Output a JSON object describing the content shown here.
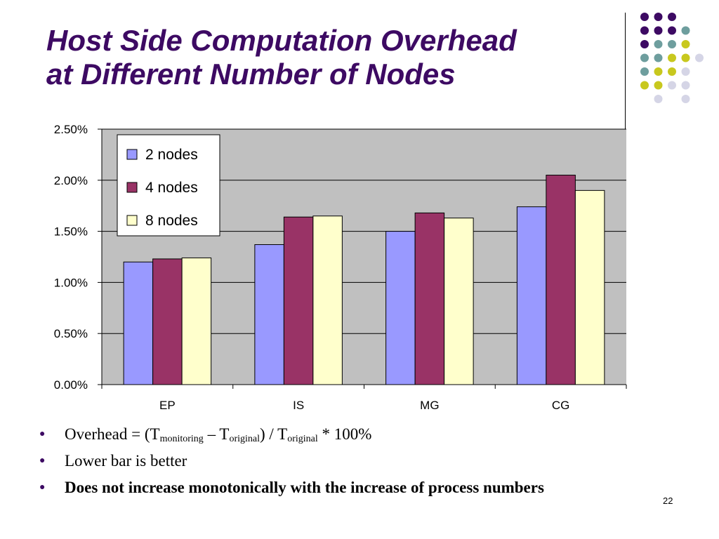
{
  "slide": {
    "title_line1": "Host Side Computation Overhead",
    "title_line2": "at Different Number of Nodes",
    "page_number": "22",
    "decor_colors": {
      "purple": "#3d0a63",
      "teal": "#6e9e9e",
      "yellow": "#c8c81e",
      "lavender": "#d5d5e6"
    }
  },
  "bullets": {
    "formula": {
      "prefix": "Overhead = (T",
      "sub1": "monitoring",
      "mid1": " – T",
      "sub2": "original",
      "mid2": ") / T",
      "sub3": "original",
      "suffix": " * 100%"
    },
    "item2": "Lower bar is better",
    "item3": "Does not increase monotonically with the increase of process numbers"
  },
  "chart_data": {
    "type": "bar",
    "categories": [
      "EP",
      "IS",
      "MG",
      "CG"
    ],
    "series": [
      {
        "name": "2 nodes",
        "color": "#9999ff",
        "values": [
          1.2,
          1.37,
          1.5,
          1.74
        ]
      },
      {
        "name": "4 nodes",
        "color": "#993366",
        "values": [
          1.23,
          1.64,
          1.68,
          2.05
        ]
      },
      {
        "name": "8 nodes",
        "color": "#ffffcc",
        "values": [
          1.24,
          1.65,
          1.63,
          1.9
        ]
      }
    ],
    "yticks": [
      "0.00%",
      "0.50%",
      "1.00%",
      "1.50%",
      "2.00%",
      "2.50%"
    ],
    "ylim": [
      0,
      2.5
    ],
    "y_unit": "%",
    "grid": true,
    "plot_background": "#c0c0c0",
    "legend_position": "top-left"
  }
}
